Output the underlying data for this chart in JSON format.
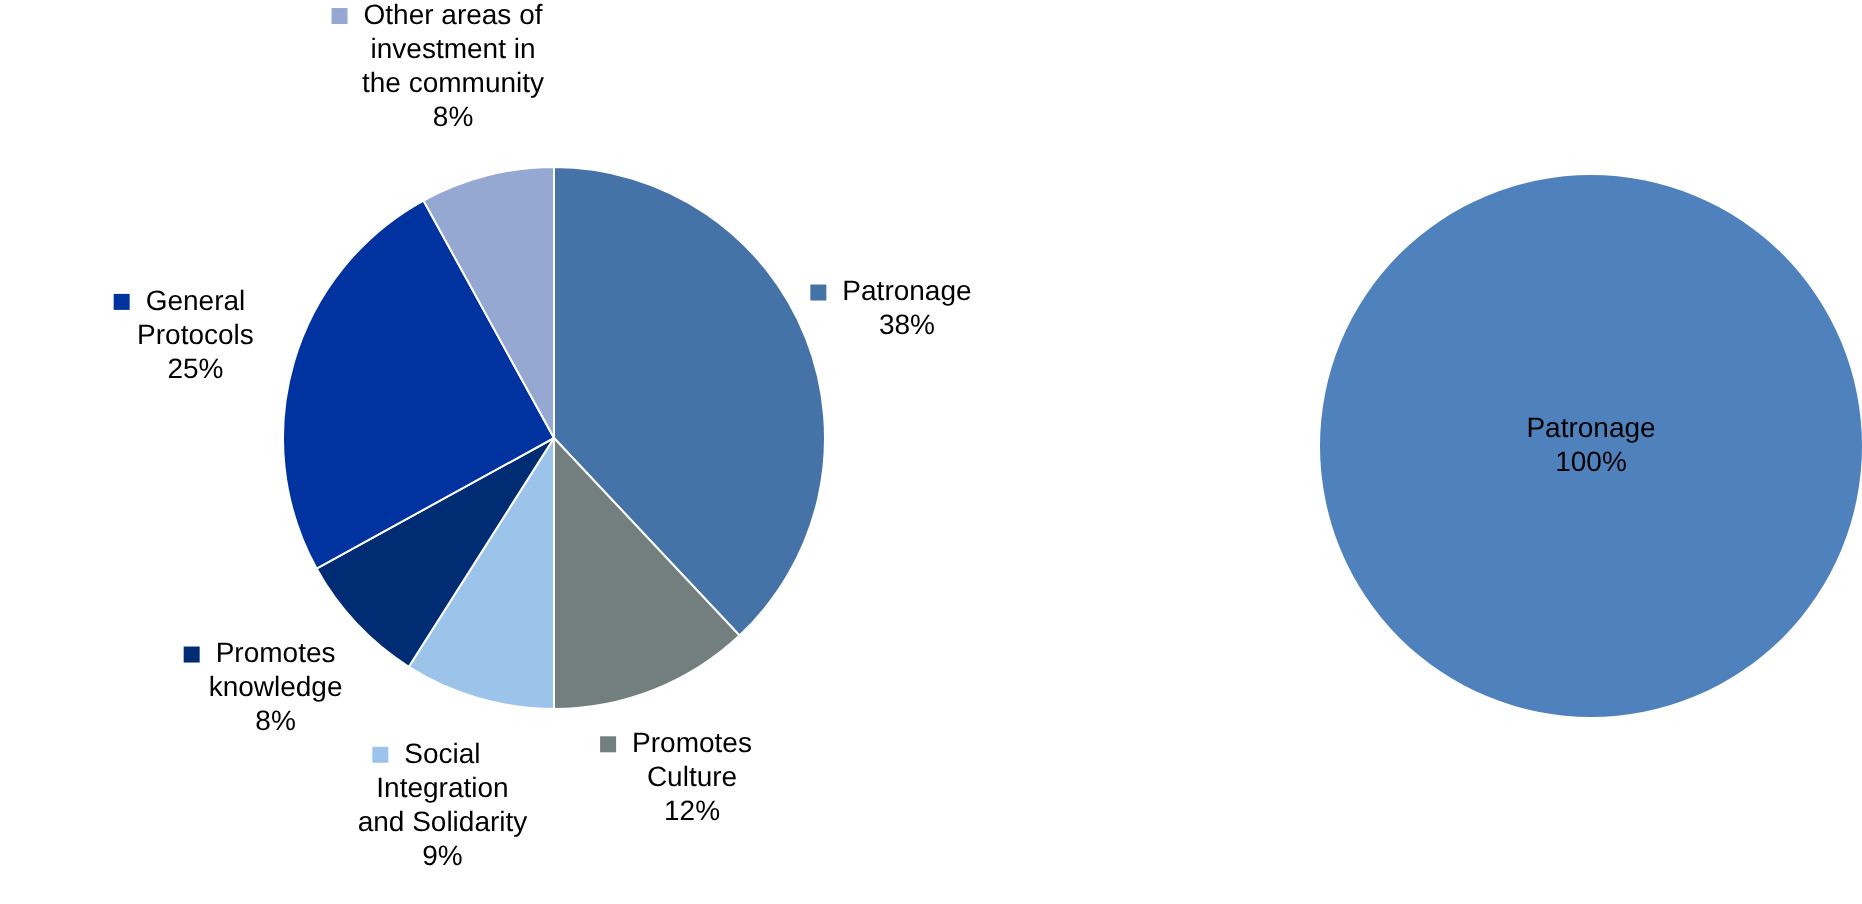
{
  "chart_data": [
    {
      "type": "pie",
      "categories": [
        "Patronage",
        "Promotes Culture",
        "Social Integration and Solidarity",
        "Promotes knowledge",
        "General Protocols",
        "Other areas of investment in the community"
      ],
      "values": [
        38,
        12,
        9,
        8,
        25,
        8
      ],
      "value_labels": [
        "38%",
        "12%",
        "9%",
        "8%",
        "25%",
        "8%"
      ],
      "colors": [
        "#4572a7",
        "#737f7f",
        "#9cc4ea",
        "#002c73",
        "#0033a0",
        "#94a8d2"
      ],
      "legend": "right"
    },
    {
      "type": "pie",
      "categories": [
        "Patronage"
      ],
      "values": [
        100
      ],
      "value_labels": [
        "100%"
      ],
      "colors": [
        "#4f81bd"
      ]
    }
  ]
}
